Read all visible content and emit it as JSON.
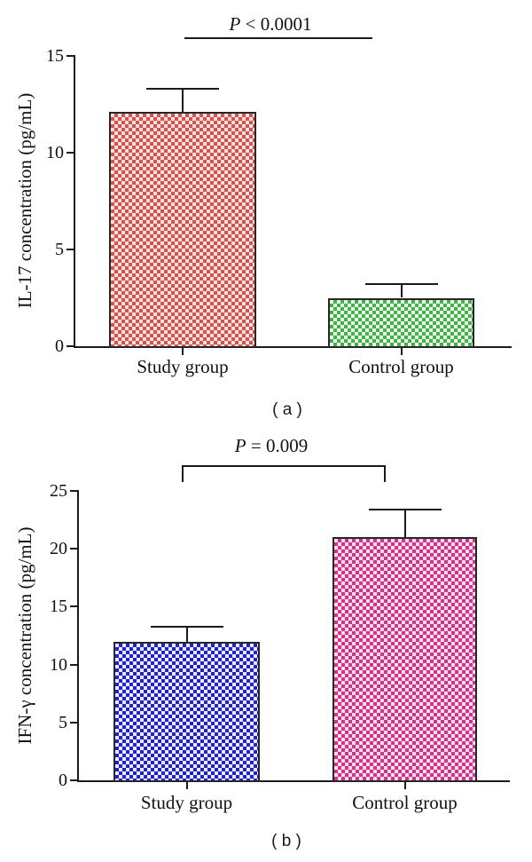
{
  "figure_title": "",
  "colors": {
    "axis": "#1a1a1a",
    "red_main": "#d9504d",
    "red_light": "#f9e2e0",
    "green_main": "#43b04a",
    "green_light": "#e9f6e9",
    "blue_main": "#2222cc",
    "blue_light": "#ebebfa",
    "pink_main": "#d73088",
    "pink_light": "#fadfee"
  },
  "chart_data": [
    {
      "type": "bar",
      "panel_label": "( a )",
      "ylabel": "IL-17 concentration (pg/mL)",
      "xlabel": "",
      "categories": [
        "Study group",
        "Control group"
      ],
      "values": [
        12.1,
        2.5
      ],
      "errors_upper": [
        1.2,
        0.7
      ],
      "ylim": [
        0,
        15
      ],
      "yticks": [
        "0",
        "5",
        "10",
        "15"
      ],
      "ytick_values": [
        0,
        5,
        10,
        15
      ],
      "significance": {
        "style": "line",
        "p_symbol": "P",
        "p_rest": " < 0.0001",
        "p_text": "P < 0.0001"
      },
      "grid": "off",
      "legend": "none",
      "bar_colors": [
        {
          "main": "#d9504d",
          "light": "#f9e2e0",
          "name": "red-checker"
        },
        {
          "main": "#43b04a",
          "light": "#e9f6e9",
          "name": "green-checker"
        }
      ]
    },
    {
      "type": "bar",
      "panel_label": "( b )",
      "ylabel": "IFN-γ concentration (pg/mL)",
      "xlabel": "",
      "categories": [
        "Study group",
        "Control group"
      ],
      "values": [
        12.0,
        21.0
      ],
      "errors_upper": [
        1.3,
        2.4
      ],
      "ylim": [
        0,
        25
      ],
      "yticks": [
        "0",
        "5",
        "10",
        "15",
        "20",
        "25"
      ],
      "ytick_values": [
        0,
        5,
        10,
        15,
        20,
        25
      ],
      "significance": {
        "style": "bracket",
        "p_symbol": "P",
        "p_rest": " = 0.009",
        "p_text": "P = 0.009"
      },
      "grid": "off",
      "legend": "none",
      "bar_colors": [
        {
          "main": "#2222cc",
          "light": "#ebebfa",
          "name": "blue-checker"
        },
        {
          "main": "#d73088",
          "light": "#fadfee",
          "name": "pink-checker"
        }
      ]
    }
  ]
}
